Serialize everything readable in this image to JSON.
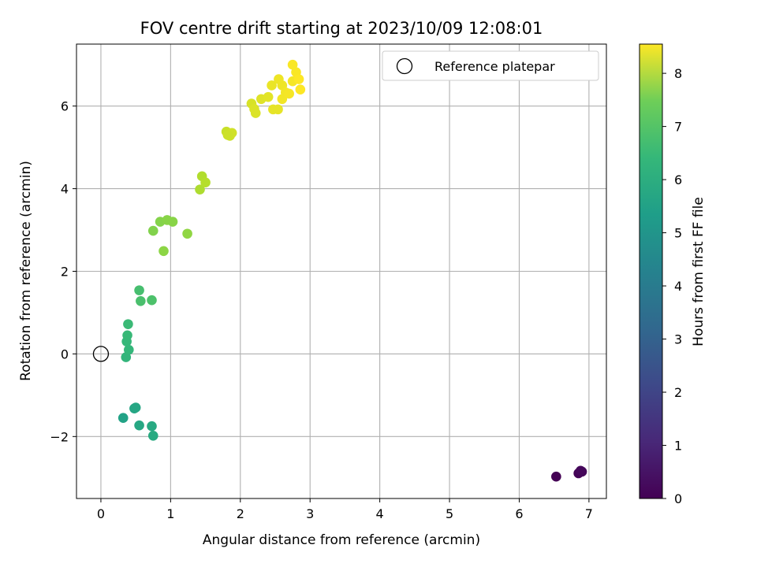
{
  "chart_data": {
    "type": "scatter",
    "title": "FOV centre drift starting at 2023/10/09 12:08:01",
    "xlabel": "Angular distance from reference (arcmin)",
    "ylabel": "Rotation from reference (arcmin)",
    "xlim": [
      -0.35,
      7.25
    ],
    "ylim": [
      -3.5,
      7.5
    ],
    "xticks": [
      0,
      1,
      2,
      3,
      4,
      5,
      6,
      7
    ],
    "yticks": [
      -2,
      0,
      2,
      4,
      6
    ],
    "grid": true,
    "colormap": "viridis",
    "colorbar": {
      "label": "Hours from first FF file",
      "range": [
        0,
        8.55
      ],
      "ticks": [
        0,
        1,
        2,
        3,
        4,
        5,
        6,
        7,
        8
      ]
    },
    "legend": {
      "position": "top-right",
      "entries": [
        {
          "label": "Reference platepar",
          "marker": "open-circle",
          "x": 0,
          "y": 0
        }
      ]
    },
    "points": [
      {
        "x": 6.53,
        "y": -2.97,
        "c": 0.0
      },
      {
        "x": 6.85,
        "y": -2.89,
        "c": 0.05
      },
      {
        "x": 6.9,
        "y": -2.85,
        "c": 0.1
      },
      {
        "x": 6.88,
        "y": -2.83,
        "c": 0.15
      },
      {
        "x": 0.32,
        "y": -1.55,
        "c": 4.9
      },
      {
        "x": 0.48,
        "y": -1.32,
        "c": 5.0
      },
      {
        "x": 0.5,
        "y": -1.3,
        "c": 5.05
      },
      {
        "x": 0.55,
        "y": -1.73,
        "c": 5.1
      },
      {
        "x": 0.73,
        "y": -1.75,
        "c": 5.15
      },
      {
        "x": 0.75,
        "y": -1.98,
        "c": 5.2
      },
      {
        "x": 0.36,
        "y": -0.08,
        "c": 5.6
      },
      {
        "x": 0.4,
        "y": 0.1,
        "c": 5.65
      },
      {
        "x": 0.37,
        "y": 0.3,
        "c": 5.7
      },
      {
        "x": 0.38,
        "y": 0.45,
        "c": 5.75
      },
      {
        "x": 0.39,
        "y": 0.72,
        "c": 5.8
      },
      {
        "x": 0.55,
        "y": 1.54,
        "c": 6.0
      },
      {
        "x": 0.57,
        "y": 1.28,
        "c": 6.05
      },
      {
        "x": 0.73,
        "y": 1.3,
        "c": 6.1
      },
      {
        "x": 0.75,
        "y": 2.98,
        "c": 6.9
      },
      {
        "x": 0.85,
        "y": 3.2,
        "c": 6.95
      },
      {
        "x": 0.95,
        "y": 3.24,
        "c": 7.0
      },
      {
        "x": 1.03,
        "y": 3.2,
        "c": 7.0
      },
      {
        "x": 0.9,
        "y": 2.49,
        "c": 7.05
      },
      {
        "x": 1.24,
        "y": 2.91,
        "c": 7.1
      },
      {
        "x": 1.42,
        "y": 3.98,
        "c": 7.5
      },
      {
        "x": 1.45,
        "y": 4.3,
        "c": 7.55
      },
      {
        "x": 1.5,
        "y": 4.15,
        "c": 7.6
      },
      {
        "x": 1.8,
        "y": 5.38,
        "c": 7.85
      },
      {
        "x": 1.85,
        "y": 5.28,
        "c": 7.9
      },
      {
        "x": 1.88,
        "y": 5.35,
        "c": 7.95
      },
      {
        "x": 1.82,
        "y": 5.3,
        "c": 7.9
      },
      {
        "x": 2.16,
        "y": 6.06,
        "c": 8.05
      },
      {
        "x": 2.2,
        "y": 5.93,
        "c": 8.1
      },
      {
        "x": 2.22,
        "y": 5.83,
        "c": 8.1
      },
      {
        "x": 2.3,
        "y": 6.17,
        "c": 8.15
      },
      {
        "x": 2.4,
        "y": 6.22,
        "c": 8.2
      },
      {
        "x": 2.47,
        "y": 5.92,
        "c": 8.25
      },
      {
        "x": 2.54,
        "y": 5.92,
        "c": 8.25
      },
      {
        "x": 2.45,
        "y": 6.5,
        "c": 8.3
      },
      {
        "x": 2.55,
        "y": 6.65,
        "c": 8.35
      },
      {
        "x": 2.6,
        "y": 6.5,
        "c": 8.35
      },
      {
        "x": 2.6,
        "y": 6.17,
        "c": 8.4
      },
      {
        "x": 2.65,
        "y": 6.33,
        "c": 8.4
      },
      {
        "x": 2.7,
        "y": 6.3,
        "c": 8.45
      },
      {
        "x": 2.75,
        "y": 6.6,
        "c": 8.45
      },
      {
        "x": 2.75,
        "y": 7.0,
        "c": 8.5
      },
      {
        "x": 2.8,
        "y": 6.82,
        "c": 8.5
      },
      {
        "x": 2.84,
        "y": 6.65,
        "c": 8.55
      },
      {
        "x": 2.86,
        "y": 6.4,
        "c": 8.55
      }
    ]
  }
}
